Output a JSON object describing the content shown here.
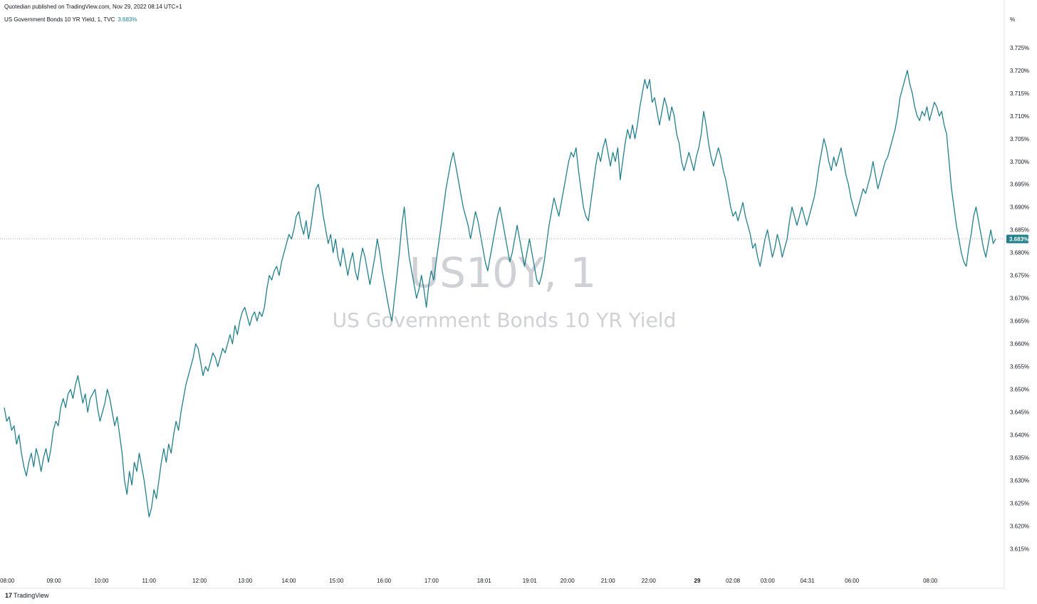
{
  "header": {
    "publisher": "Quotedian published on TradingView.com, Nov 29, 2022 08:14 UTC+1",
    "legend": "US Government Bonds 10 YR Yield, 1, TVC",
    "last_value": "3.683%"
  },
  "watermark": {
    "symbol": "US10Y, 1",
    "name": "US Government Bonds 10 YR Yield"
  },
  "brand": {
    "logo": "17",
    "name": "TradingView"
  },
  "colors": {
    "line": "#22808d",
    "last_badge": "#22808d",
    "grid_line": "#9aa0a8"
  },
  "chart_data": {
    "type": "line",
    "title": "",
    "xlabel": "",
    "ylabel": "%",
    "unit_label": "%",
    "ylim": [
      3.6115,
      3.7295
    ],
    "grid": false,
    "last_price": 3.683,
    "last_price_label": "3.683%",
    "y_ticks": [
      "3.615%",
      "3.620%",
      "3.625%",
      "3.630%",
      "3.635%",
      "3.640%",
      "3.645%",
      "3.650%",
      "3.655%",
      "3.660%",
      "3.665%",
      "3.670%",
      "3.675%",
      "3.680%",
      "3.685%",
      "3.690%",
      "3.695%",
      "3.700%",
      "3.705%",
      "3.710%",
      "3.715%",
      "3.720%",
      "3.725%"
    ],
    "x_ticks": [
      {
        "label": "08:00",
        "pos": 0.003
      },
      {
        "label": "09:00",
        "pos": 0.05
      },
      {
        "label": "10:00",
        "pos": 0.098
      },
      {
        "label": "11:00",
        "pos": 0.146
      },
      {
        "label": "12:00",
        "pos": 0.197
      },
      {
        "label": "13:00",
        "pos": 0.243
      },
      {
        "label": "14:00",
        "pos": 0.287
      },
      {
        "label": "15:00",
        "pos": 0.335
      },
      {
        "label": "16:00",
        "pos": 0.383
      },
      {
        "label": "17:00",
        "pos": 0.431
      },
      {
        "label": "18:01",
        "pos": 0.484
      },
      {
        "label": "19:01",
        "pos": 0.53
      },
      {
        "label": "20:00",
        "pos": 0.568
      },
      {
        "label": "21:00",
        "pos": 0.609
      },
      {
        "label": "22:00",
        "pos": 0.65
      },
      {
        "label": "29",
        "pos": 0.699,
        "bold": true
      },
      {
        "label": "02:08",
        "pos": 0.735
      },
      {
        "label": "03:00",
        "pos": 0.77
      },
      {
        "label": "04:31",
        "pos": 0.81
      },
      {
        "label": "06:00",
        "pos": 0.855
      },
      {
        "label": "08:00",
        "pos": 0.934
      }
    ],
    "series": [
      {
        "values": [
          3.646,
          3.643,
          3.644,
          3.641,
          3.642,
          3.638,
          3.64,
          3.636,
          3.633,
          3.631,
          3.634,
          3.636,
          3.633,
          3.637,
          3.635,
          3.632,
          3.635,
          3.637,
          3.634,
          3.637,
          3.641,
          3.643,
          3.642,
          3.646,
          3.648,
          3.646,
          3.649,
          3.65,
          3.648,
          3.651,
          3.653,
          3.65,
          3.647,
          3.649,
          3.645,
          3.648,
          3.649,
          3.65,
          3.646,
          3.643,
          3.645,
          3.647,
          3.65,
          3.648,
          3.645,
          3.642,
          3.644,
          3.64,
          3.636,
          3.63,
          3.627,
          3.632,
          3.629,
          3.634,
          3.632,
          3.636,
          3.633,
          3.63,
          3.626,
          3.622,
          3.624,
          3.628,
          3.626,
          3.63,
          3.634,
          3.637,
          3.634,
          3.638,
          3.636,
          3.64,
          3.643,
          3.641,
          3.645,
          3.648,
          3.651,
          3.653,
          3.655,
          3.657,
          3.66,
          3.659,
          3.656,
          3.653,
          3.655,
          3.654,
          3.656,
          3.658,
          3.657,
          3.655,
          3.657,
          3.659,
          3.658,
          3.66,
          3.662,
          3.66,
          3.664,
          3.662,
          3.665,
          3.667,
          3.668,
          3.666,
          3.664,
          3.666,
          3.667,
          3.665,
          3.667,
          3.666,
          3.668,
          3.672,
          3.675,
          3.674,
          3.676,
          3.677,
          3.675,
          3.678,
          3.68,
          3.682,
          3.684,
          3.683,
          3.685,
          3.688,
          3.689,
          3.686,
          3.684,
          3.687,
          3.683,
          3.686,
          3.69,
          3.694,
          3.695,
          3.692,
          3.688,
          3.685,
          3.682,
          3.684,
          3.68,
          3.683,
          3.679,
          3.677,
          3.681,
          3.678,
          3.675,
          3.678,
          3.68,
          3.676,
          3.674,
          3.678,
          3.681,
          3.679,
          3.676,
          3.673,
          3.676,
          3.679,
          3.683,
          3.68,
          3.676,
          3.673,
          3.67,
          3.667,
          3.665,
          3.67,
          3.675,
          3.68,
          3.686,
          3.69,
          3.684,
          3.679,
          3.676,
          3.673,
          3.67,
          3.672,
          3.675,
          3.672,
          3.668,
          3.673,
          3.676,
          3.674,
          3.678,
          3.682,
          3.686,
          3.69,
          3.694,
          3.697,
          3.7,
          3.702,
          3.699,
          3.696,
          3.693,
          3.69,
          3.688,
          3.686,
          3.683,
          3.686,
          3.689,
          3.687,
          3.684,
          3.681,
          3.678,
          3.676,
          3.679,
          3.682,
          3.685,
          3.688,
          3.69,
          3.687,
          3.684,
          3.681,
          3.678,
          3.68,
          3.683,
          3.686,
          3.683,
          3.68,
          3.677,
          3.68,
          3.683,
          3.68,
          3.677,
          3.674,
          3.673,
          3.675,
          3.678,
          3.682,
          3.686,
          3.689,
          3.692,
          3.69,
          3.688,
          3.691,
          3.694,
          3.697,
          3.7,
          3.702,
          3.701,
          3.703,
          3.698,
          3.694,
          3.69,
          3.688,
          3.687,
          3.691,
          3.695,
          3.699,
          3.702,
          3.7,
          3.703,
          3.705,
          3.702,
          3.699,
          3.702,
          3.7,
          3.703,
          3.696,
          3.7,
          3.704,
          3.707,
          3.705,
          3.708,
          3.705,
          3.708,
          3.712,
          3.715,
          3.718,
          3.716,
          3.718,
          3.713,
          3.714,
          3.711,
          3.708,
          3.711,
          3.714,
          3.712,
          3.709,
          3.712,
          3.71,
          3.706,
          3.704,
          3.7,
          3.698,
          3.7,
          3.702,
          3.7,
          3.698,
          3.701,
          3.703,
          3.706,
          3.711,
          3.708,
          3.704,
          3.701,
          3.699,
          3.701,
          3.703,
          3.701,
          3.698,
          3.696,
          3.693,
          3.69,
          3.688,
          3.689,
          3.687,
          3.689,
          3.691,
          3.688,
          3.686,
          3.684,
          3.681,
          3.682,
          3.679,
          3.677,
          3.68,
          3.683,
          3.685,
          3.682,
          3.679,
          3.681,
          3.684,
          3.682,
          3.679,
          3.681,
          3.683,
          3.687,
          3.69,
          3.688,
          3.686,
          3.688,
          3.69,
          3.688,
          3.686,
          3.688,
          3.69,
          3.692,
          3.695,
          3.699,
          3.702,
          3.705,
          3.703,
          3.7,
          3.698,
          3.701,
          3.699,
          3.701,
          3.703,
          3.7,
          3.697,
          3.695,
          3.692,
          3.69,
          3.688,
          3.69,
          3.692,
          3.694,
          3.693,
          3.695,
          3.697,
          3.7,
          3.697,
          3.694,
          3.696,
          3.698,
          3.7,
          3.701,
          3.703,
          3.705,
          3.707,
          3.71,
          3.714,
          3.716,
          3.718,
          3.72,
          3.717,
          3.715,
          3.712,
          3.71,
          3.709,
          3.711,
          3.71,
          3.712,
          3.709,
          3.711,
          3.713,
          3.712,
          3.71,
          3.711,
          3.708,
          3.706,
          3.7,
          3.694,
          3.69,
          3.686,
          3.683,
          3.68,
          3.678,
          3.677,
          3.681,
          3.684,
          3.688,
          3.69,
          3.687,
          3.684,
          3.681,
          3.679,
          3.682,
          3.685,
          3.682,
          3.683
        ]
      }
    ]
  }
}
